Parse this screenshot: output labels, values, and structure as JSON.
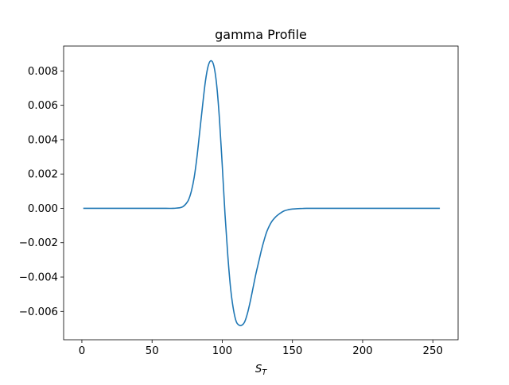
{
  "chart_data": {
    "type": "line",
    "title": "gamma Profile",
    "xlabel_main": "S",
    "xlabel_sub": "T",
    "ylabel": "",
    "xlim": [
      -13,
      268
    ],
    "ylim": [
      -0.00765,
      0.00945
    ],
    "xticks": [
      0,
      50,
      100,
      150,
      200,
      250
    ],
    "xtick_labels": [
      "0",
      "50",
      "100",
      "150",
      "200",
      "250"
    ],
    "yticks": [
      -0.006,
      -0.004,
      -0.002,
      0.0,
      0.002,
      0.004,
      0.006,
      0.008
    ],
    "ytick_labels": [
      "−0.006",
      "−0.004",
      "−0.002",
      "0.000",
      "0.002",
      "0.004",
      "0.006",
      "0.008"
    ],
    "grid": false,
    "legend": "none",
    "series": [
      {
        "color": "#1f77b4",
        "x": [
          1,
          10,
          20,
          30,
          40,
          50,
          60,
          65,
          68,
          70,
          72,
          74,
          76,
          78,
          80,
          82,
          84,
          86,
          88,
          90,
          92,
          94,
          96,
          98,
          100,
          102,
          104,
          106,
          108,
          110,
          112,
          114,
          116,
          118,
          120,
          122,
          124,
          126,
          128,
          130,
          132,
          135,
          138,
          141,
          144,
          147,
          150,
          153,
          156,
          160,
          170,
          180,
          200,
          220,
          240,
          255
        ],
        "y": [
          0.0,
          0.0,
          0.0,
          0.0,
          0.0,
          0.0,
          0.0,
          0.0,
          2e-05,
          4e-05,
          0.0001,
          0.00025,
          0.0005,
          0.001,
          0.0018,
          0.003,
          0.0045,
          0.006,
          0.0074,
          0.0083,
          0.0086,
          0.0083,
          0.0072,
          0.0052,
          0.0025,
          -0.0004,
          -0.0028,
          -0.0047,
          -0.0059,
          -0.0066,
          -0.0068,
          -0.0068,
          -0.0066,
          -0.0061,
          -0.0054,
          -0.0046,
          -0.0038,
          -0.0031,
          -0.0024,
          -0.0018,
          -0.0013,
          -0.0008,
          -0.0005,
          -0.0003,
          -0.00015,
          -8e-05,
          -4e-05,
          -2e-05,
          -1e-05,
          0.0,
          0.0,
          0.0,
          0.0,
          0.0,
          0.0,
          0.0
        ]
      }
    ]
  }
}
